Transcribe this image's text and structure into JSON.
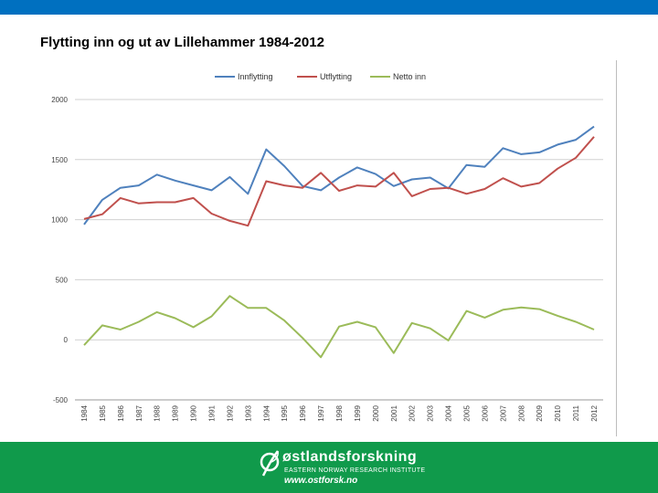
{
  "slide": {
    "title": "Flytting inn og ut av Lillehammer 1984-2012"
  },
  "footer": {
    "org_name": "østlandsforskning",
    "org_subtitle": "EASTERN NORWAY RESEARCH INSTITUTE",
    "org_url": "www.ostforsk.no",
    "logo_icon": "leaf-circle-icon",
    "background_color": "#109a4b"
  },
  "chart_data": {
    "type": "line",
    "legend_position": "top",
    "grid": true,
    "ylim": [
      -500,
      2000
    ],
    "y_ticks": [
      -500,
      0,
      500,
      1000,
      1500,
      2000
    ],
    "x": [
      1984,
      1985,
      1986,
      1987,
      1988,
      1989,
      1990,
      1991,
      1992,
      1993,
      1994,
      1995,
      1996,
      1997,
      1998,
      1999,
      2000,
      2001,
      2002,
      2003,
      2004,
      2005,
      2006,
      2007,
      2008,
      2009,
      2010,
      2011,
      2012
    ],
    "x_labels": [
      "1984",
      "1985",
      "1986",
      "1987",
      "1988",
      "1989",
      "1990",
      "1991",
      "1992",
      "1993",
      "1994",
      "1995",
      "1996",
      "1997",
      "1998",
      "1999",
      "2000",
      "2001",
      "2002",
      "2003",
      "2004",
      "2005",
      "2006",
      "2007",
      "2008",
      "2009",
      "2010",
      "2011",
      "2012"
    ],
    "series": [
      {
        "name": "Innflytting",
        "color": "#4f81bd",
        "values": [
          960,
          1165,
          1265,
          1285,
          1375,
          1325,
          1285,
          1245,
          1355,
          1215,
          1585,
          1445,
          1280,
          1245,
          1350,
          1435,
          1380,
          1280,
          1335,
          1350,
          1260,
          1455,
          1440,
          1595,
          1545,
          1560,
          1625,
          1665,
          1775
        ]
      },
      {
        "name": "Utflytting",
        "color": "#c0504d",
        "values": [
          1005,
          1045,
          1180,
          1135,
          1145,
          1145,
          1180,
          1050,
          990,
          950,
          1320,
          1285,
          1265,
          1390,
          1240,
          1285,
          1275,
          1390,
          1195,
          1255,
          1265,
          1215,
          1255,
          1345,
          1275,
          1305,
          1425,
          1515,
          1690
        ]
      },
      {
        "name": "Netto inn",
        "color": "#9bbb59",
        "values": [
          -45,
          120,
          85,
          150,
          230,
          180,
          105,
          195,
          365,
          265,
          265,
          160,
          15,
          -145,
          110,
          150,
          105,
          -110,
          140,
          95,
          -5,
          240,
          185,
          250,
          270,
          255,
          200,
          150,
          85
        ]
      }
    ]
  }
}
